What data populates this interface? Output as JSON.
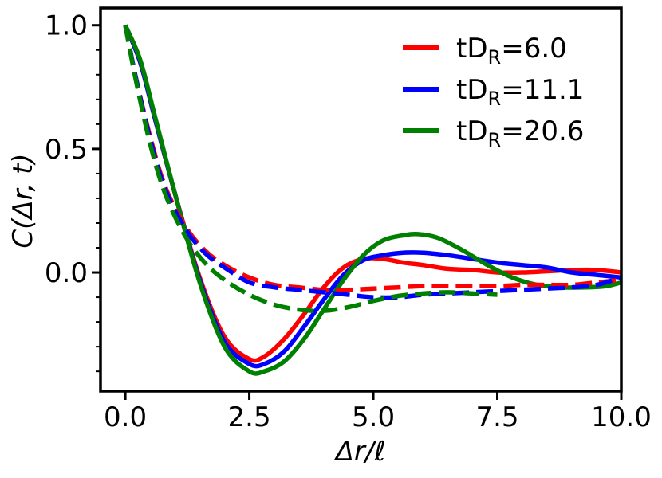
{
  "chart_data": {
    "type": "line",
    "xlabel": "Δr/ℓ",
    "ylabel": "C(Δr, t)",
    "xlim": [
      -0.5,
      10.0
    ],
    "ylim": [
      -0.48,
      1.07
    ],
    "xticks": [
      0.0,
      2.5,
      5.0,
      7.5,
      10.0
    ],
    "xtick_labels": [
      "0.0",
      "2.5",
      "5.0",
      "7.5",
      "10.0"
    ],
    "yticks": [
      1.0,
      0.5,
      0.0
    ],
    "ytick_labels": [
      "1.0",
      "0.5",
      "0.0"
    ],
    "y_minor_ticks": [
      -0.4,
      -0.3,
      -0.2,
      -0.1,
      0.1,
      0.2,
      0.3,
      0.4,
      0.6,
      0.7,
      0.8,
      0.9
    ],
    "grid": false,
    "legend_position": "top-right",
    "legend": [
      {
        "prefix": "tD",
        "sub": "R",
        "suffix": "=6.0",
        "color": "#ff0000"
      },
      {
        "prefix": "tD",
        "sub": "R",
        "suffix": "=11.1",
        "color": "#0000ff"
      },
      {
        "prefix": "tD",
        "sub": "R",
        "suffix": "=20.6",
        "color": "#008000"
      }
    ],
    "series": [
      {
        "color": "#ff0000",
        "style": "solid",
        "x": [
          0,
          0.3,
          0.6,
          1.0,
          1.5,
          2.0,
          2.5,
          2.8,
          3.2,
          3.6,
          4.0,
          4.4,
          4.8,
          5.2,
          5.6,
          6.0,
          6.5,
          7.0,
          7.5,
          8.0,
          8.5,
          9.0,
          9.5,
          10.0
        ],
        "y": [
          1.0,
          0.85,
          0.62,
          0.32,
          -0.02,
          -0.26,
          -0.35,
          -0.34,
          -0.27,
          -0.17,
          -0.06,
          0.02,
          0.055,
          0.055,
          0.04,
          0.03,
          0.015,
          0.01,
          0.0,
          0.0,
          0.005,
          0.01,
          0.01,
          0.0
        ]
      },
      {
        "color": "#0000ff",
        "style": "solid",
        "x": [
          0,
          0.3,
          0.6,
          1.0,
          1.5,
          2.0,
          2.5,
          2.8,
          3.2,
          3.6,
          4.0,
          4.4,
          4.8,
          5.2,
          5.6,
          6.0,
          6.5,
          7.0,
          7.5,
          8.0,
          8.5,
          9.0,
          9.5,
          10.0
        ],
        "y": [
          1.0,
          0.85,
          0.62,
          0.32,
          -0.03,
          -0.28,
          -0.37,
          -0.37,
          -0.32,
          -0.22,
          -0.11,
          -0.01,
          0.05,
          0.07,
          0.08,
          0.08,
          0.07,
          0.055,
          0.04,
          0.03,
          0.02,
          0.0,
          -0.01,
          -0.02
        ]
      },
      {
        "color": "#008000",
        "style": "solid",
        "x": [
          0,
          0.3,
          0.6,
          1.0,
          1.5,
          2.0,
          2.5,
          2.8,
          3.2,
          3.6,
          4.0,
          4.4,
          4.8,
          5.2,
          5.6,
          5.9,
          6.3,
          6.8,
          7.3,
          7.8,
          8.3,
          8.8,
          9.3,
          9.7,
          10.0
        ],
        "y": [
          1.0,
          0.86,
          0.63,
          0.32,
          -0.04,
          -0.3,
          -0.4,
          -0.4,
          -0.36,
          -0.27,
          -0.15,
          -0.03,
          0.07,
          0.13,
          0.15,
          0.155,
          0.14,
          0.09,
          0.03,
          -0.02,
          -0.05,
          -0.06,
          -0.06,
          -0.055,
          -0.04
        ]
      },
      {
        "color": "#ff0000",
        "style": "dashed",
        "x": [
          0,
          0.2,
          0.5,
          0.8,
          1.2,
          1.6,
          2.0,
          2.5,
          3.0,
          3.5,
          4.0,
          4.5,
          5.0,
          5.5,
          6.0,
          6.5,
          7.0,
          7.5,
          8.0,
          8.5,
          9.0,
          9.5,
          10.0
        ],
        "y": [
          1.0,
          0.8,
          0.55,
          0.35,
          0.19,
          0.09,
          0.03,
          -0.02,
          -0.05,
          -0.06,
          -0.07,
          -0.07,
          -0.065,
          -0.06,
          -0.055,
          -0.055,
          -0.055,
          -0.055,
          -0.05,
          -0.05,
          -0.05,
          -0.04,
          -0.03
        ]
      },
      {
        "color": "#0000ff",
        "style": "dashed",
        "x": [
          0,
          0.2,
          0.5,
          0.8,
          1.2,
          1.6,
          2.0,
          2.5,
          3.0,
          3.5,
          4.0,
          4.5,
          5.0,
          5.5,
          6.0,
          6.5,
          7.0,
          7.5,
          8.0,
          8.5,
          9.0,
          9.5,
          10.0
        ],
        "y": [
          1.0,
          0.8,
          0.54,
          0.34,
          0.18,
          0.08,
          0.02,
          -0.04,
          -0.06,
          -0.07,
          -0.08,
          -0.09,
          -0.1,
          -0.1,
          -0.09,
          -0.085,
          -0.08,
          -0.075,
          -0.07,
          -0.065,
          -0.06,
          -0.05,
          -0.02
        ]
      },
      {
        "color": "#008000",
        "style": "dashed",
        "x": [
          0,
          0.2,
          0.5,
          0.8,
          1.2,
          1.6,
          2.0,
          2.5,
          3.0,
          3.5,
          4.0,
          4.5,
          5.0,
          5.5,
          6.0,
          6.5,
          7.0,
          7.5
        ],
        "y": [
          1.0,
          0.79,
          0.52,
          0.32,
          0.15,
          0.04,
          -0.03,
          -0.09,
          -0.13,
          -0.15,
          -0.155,
          -0.14,
          -0.115,
          -0.095,
          -0.085,
          -0.08,
          -0.085,
          -0.09
        ]
      }
    ]
  }
}
